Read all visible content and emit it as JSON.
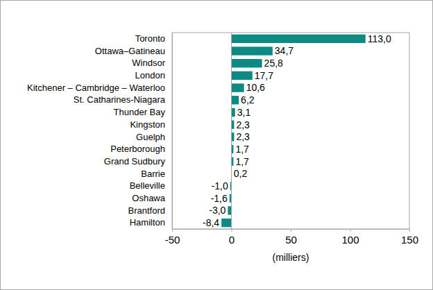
{
  "chart_data": {
    "type": "bar",
    "orientation": "horizontal",
    "categories": [
      "Toronto",
      "Ottawa–Gatineau",
      "Windsor",
      "London",
      "Kitchener – Cambridge – Waterloo",
      "St. Catharines-Niagara",
      "Thunder Bay",
      "Kingston",
      "Guelph",
      "Peterborough",
      "Grand Sudbury",
      "Barrie",
      "Belleville",
      "Oshawa",
      "Brantford",
      "Hamilton"
    ],
    "values": [
      113.0,
      34.7,
      25.8,
      17.7,
      10.6,
      6.2,
      3.1,
      2.3,
      2.3,
      1.7,
      1.7,
      0.2,
      -1.0,
      -1.6,
      -3.0,
      -8.4
    ],
    "value_labels": [
      "113,0",
      "34,7",
      "25,8",
      "17,7",
      "10,6",
      "6,2",
      "3,1",
      "2,3",
      "2,3",
      "1,7",
      "1,7",
      "0,2",
      "-1,0",
      "-1,6",
      "-3,0",
      "-8,4"
    ],
    "color": "#0e8a84",
    "x_label": "(milliers)",
    "xlim": [
      -50,
      150
    ],
    "xticks": [
      -50,
      0,
      50,
      100,
      150
    ],
    "grid": false,
    "data_labels": true
  }
}
